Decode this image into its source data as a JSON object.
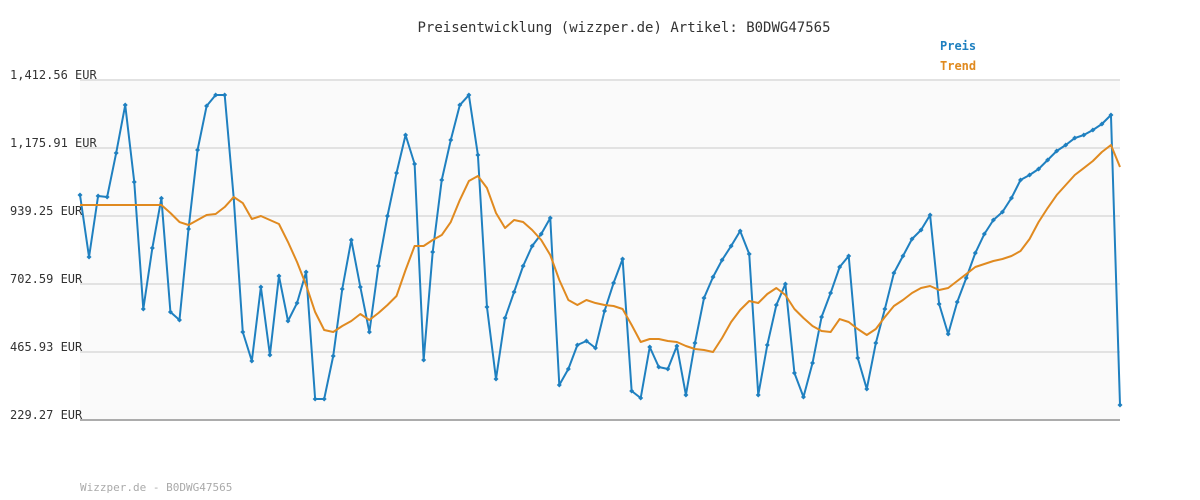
{
  "chart_data": {
    "type": "line",
    "title": "Preisentwicklung (wizzper.de) Artikel: B0DWG47565",
    "footer": "Wizzper.de - B0DWG47565",
    "ylim": [
      229.27,
      1412.56
    ],
    "yticks": [
      {
        "value": 229.27,
        "label": "229.27 EUR"
      },
      {
        "value": 465.93,
        "label": "465.93 EUR"
      },
      {
        "value": 702.59,
        "label": "702.59 EUR"
      },
      {
        "value": 939.25,
        "label": "939.25 EUR"
      },
      {
        "value": 1175.91,
        "label": "1,175.91 EUR"
      },
      {
        "value": 1412.56,
        "label": "1,412.56 EUR"
      }
    ],
    "grid": true,
    "legend": "top-right",
    "series": [
      {
        "name": "Preis",
        "color": "#1f80c0",
        "markers": true,
        "values": [
          1012.3,
          796.5,
          1008.8,
          1005.3,
          1158.4,
          1325.5,
          1057.5,
          615.6,
          827.8,
          1001.0,
          605.1,
          577.3,
          894.0,
          1168.9,
          1322.0,
          1360.3,
          1360.3,
          1000.9,
          535.5,
          434.6,
          692.1,
          455.5,
          730.4,
          573.8,
          636.4,
          744.3,
          302.4,
          302.4,
          452.0,
          685.2,
          855.7,
          692.1,
          535.5,
          765.2,
          939.2,
          1088.8,
          1221.1,
          1120.2,
          438.1,
          813.9,
          1064.5,
          1203.7,
          1325.5,
          1360.3,
          1151.5,
          622.5,
          372.0,
          584.2,
          674.7,
          765.2,
          834.8,
          876.6,
          932.2,
          351.1,
          406.8,
          490.3,
          504.2,
          479.9,
          608.6,
          706.0,
          789.6,
          330.2,
          305.8,
          483.3,
          413.7,
          406.8,
          486.8,
          316.3,
          497.2,
          653.8,
          726.9,
          786.1,
          834.8,
          887.0,
          807.0,
          316.3,
          490.3,
          629.5,
          702.6,
          392.8,
          309.3,
          427.6,
          587.7,
          671.2,
          761.7,
          800.0,
          445.0,
          337.2,
          497.2,
          615.6,
          740.8,
          800.0,
          859.2,
          890.5,
          942.7,
          633.0,
          528.6,
          639.9,
          723.4,
          810.4,
          876.6,
          925.3,
          953.1,
          1002.0,
          1064.5,
          1081.9,
          1102.8,
          1134.1,
          1165.4,
          1186.3,
          1210.6,
          1221.1,
          1238.5,
          1259.4,
          1290.7,
          281.5
        ]
      },
      {
        "name": "Trend",
        "color": "#e08a20",
        "markers": false,
        "values": [
          977.5,
          977.5,
          977.5,
          977.5,
          977.5,
          977.5,
          977.5,
          977.5,
          977.5,
          977.5,
          949.6,
          918.3,
          907.9,
          925.3,
          942.7,
          946.2,
          970.5,
          1005.3,
          984.4,
          928.8,
          939.2,
          925.3,
          911.4,
          848.7,
          779.1,
          699.1,
          605.1,
          542.5,
          535.5,
          556.4,
          573.8,
          598.1,
          577.3,
          601.6,
          629.5,
          660.8,
          751.3,
          834.8,
          834.8,
          855.7,
          873.1,
          918.3,
          994.9,
          1061.0,
          1078.4,
          1036.6,
          949.6,
          897.4,
          925.3,
          918.3,
          890.5,
          855.7,
          803.5,
          716.5,
          646.9,
          629.5,
          646.9,
          636.4,
          629.5,
          626.0,
          615.6,
          559.9,
          500.7,
          511.2,
          511.2,
          504.2,
          500.7,
          486.8,
          476.4,
          472.9,
          465.9,
          514.6,
          570.3,
          612.1,
          643.4,
          636.4,
          667.8,
          688.6,
          664.3,
          615.6,
          584.2,
          556.4,
          539.0,
          535.5,
          580.7,
          570.3,
          546.0,
          525.1,
          546.0,
          587.7,
          626.0,
          646.9,
          671.2,
          688.6,
          695.6,
          681.7,
          688.6,
          713.0,
          737.3,
          761.7,
          772.2,
          782.6,
          789.6,
          800.0,
          817.4,
          859.2,
          918.3,
          967.0,
          1012.3,
          1047.1,
          1081.9,
          1106.2,
          1130.6,
          1161.9,
          1186.3,
          1109.7
        ]
      }
    ]
  }
}
